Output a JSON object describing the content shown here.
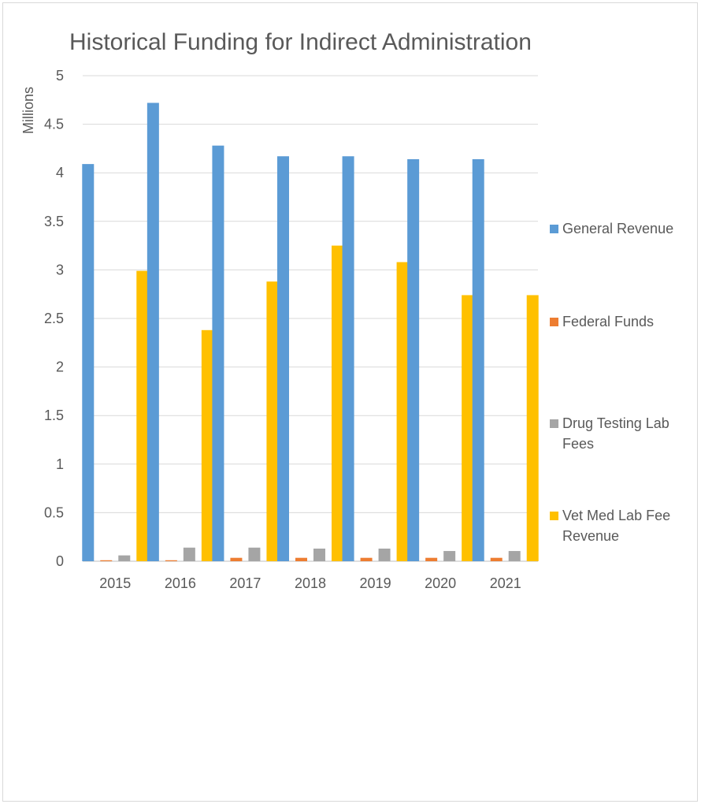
{
  "chart_data": {
    "type": "bar",
    "title": "Historical Funding for Indirect Administration",
    "ylabel": "Millions",
    "xlabel": "",
    "ylim": [
      0,
      5
    ],
    "yticks": [
      "0",
      "0.5",
      "1",
      "1.5",
      "2",
      "2.5",
      "3",
      "3.5",
      "4",
      "4.5",
      "5"
    ],
    "grid": true,
    "legend_position": "right",
    "categories": [
      "2015",
      "2016",
      "2017",
      "2018",
      "2019",
      "2020",
      "2021"
    ],
    "series": [
      {
        "name": "General Revenue",
        "legend_lines": [
          "General Revenue"
        ],
        "color": "#5b9bd5",
        "values": [
          4.09,
          4.72,
          4.28,
          4.17,
          4.17,
          4.14,
          4.14
        ]
      },
      {
        "name": "Federal Funds",
        "legend_lines": [
          "Federal Funds"
        ],
        "color": "#ed7d31",
        "values": [
          0.01,
          0.01,
          0.035,
          0.035,
          0.035,
          0.035,
          0.035
        ]
      },
      {
        "name": "Drug Testing Lab Fees",
        "legend_lines": [
          "Drug Testing Lab",
          "Fees"
        ],
        "color": "#a5a5a5",
        "values": [
          0.06,
          0.14,
          0.14,
          0.13,
          0.13,
          0.105,
          0.105
        ]
      },
      {
        "name": "Vet Med Lab Fee Revenue",
        "legend_lines": [
          "Vet Med Lab Fee",
          "Revenue"
        ],
        "color": "#ffc000",
        "values": [
          2.99,
          2.38,
          2.88,
          3.25,
          3.08,
          2.74,
          2.74
        ]
      }
    ]
  }
}
